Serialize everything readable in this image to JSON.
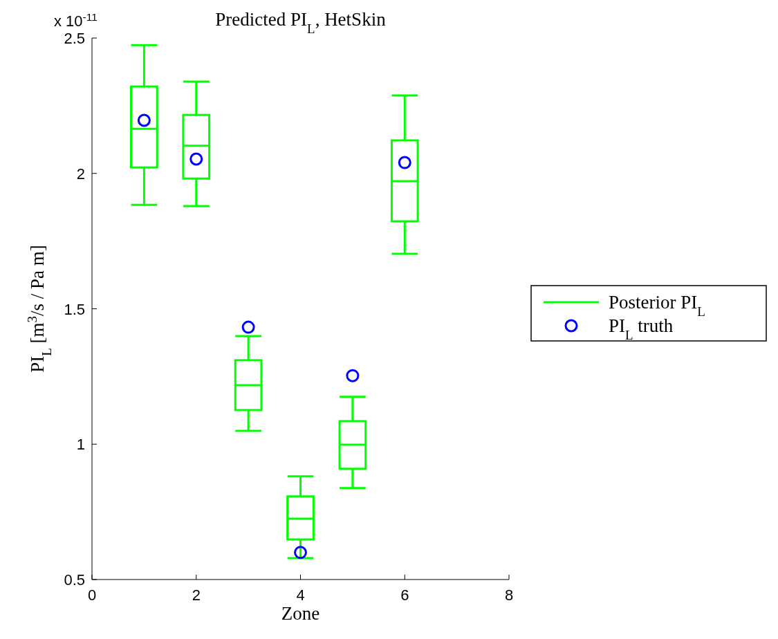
{
  "chart_data": {
    "type": "box",
    "title": "Predicted PI$_{L}$, HetSkin",
    "xlabel": "Zone",
    "ylabel": "PI$_{L}$ [m$^{3}$/s / Pa m]",
    "annotations": [
      "x 10$^{-11}$"
    ],
    "xlim": [
      0,
      8
    ],
    "xticks": [
      0,
      2,
      4,
      6,
      8
    ],
    "ylim": [
      0.5,
      2.5
    ],
    "yticks": [
      0.5,
      1,
      1.5,
      2,
      2.5
    ],
    "legend": "right",
    "series": [
      {
        "name": "Posterior PI$_{L}$",
        "color": "#00ff00",
        "x": [
          1,
          2,
          3,
          4,
          5,
          6
        ],
        "boxes": [
          {
            "low": 1.884,
            "q1": 2.022,
            "median": 2.165,
            "q3": 2.321,
            "high": 2.474
          },
          {
            "low": 1.879,
            "q1": 1.981,
            "median": 2.102,
            "q3": 2.216,
            "high": 2.339
          },
          {
            "low": 1.049,
            "q1": 1.126,
            "median": 1.218,
            "q3": 1.31,
            "high": 1.399
          },
          {
            "low": 0.579,
            "q1": 0.648,
            "median": 0.725,
            "q3": 0.807,
            "high": 0.881
          },
          {
            "low": 0.838,
            "q1": 0.909,
            "median": 0.998,
            "q3": 1.085,
            "high": 1.175
          },
          {
            "low": 1.703,
            "q1": 1.823,
            "median": 1.971,
            "q3": 2.122,
            "high": 2.288
          }
        ]
      },
      {
        "name": "PI$_{L}$ truth",
        "type": "scatter",
        "color": "#0000ff",
        "marker": "circle",
        "x": [
          1,
          2,
          3,
          4,
          5,
          6
        ],
        "values": [
          2.196,
          2.053,
          1.432,
          0.6,
          1.253,
          2.04
        ]
      }
    ]
  }
}
